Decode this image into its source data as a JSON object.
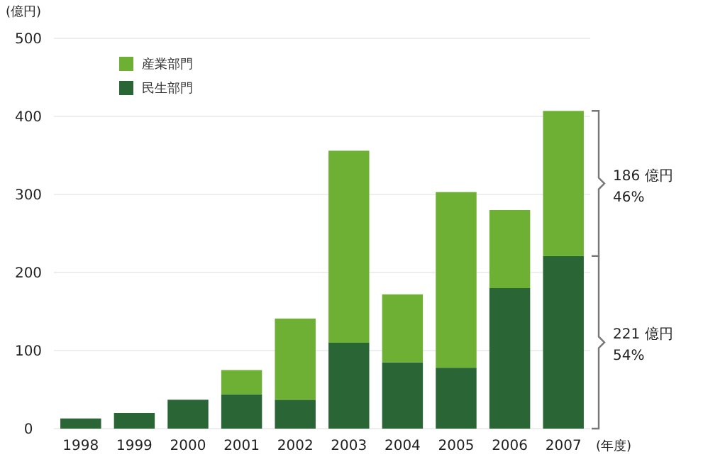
{
  "chart_data": {
    "type": "bar",
    "stacked": true,
    "ylabel": "(億円)",
    "xlabel": "(年度)",
    "categories": [
      "1998",
      "1999",
      "2000",
      "2001",
      "2002",
      "2003",
      "2004",
      "2005",
      "2006",
      "2007"
    ],
    "series": [
      {
        "name": "民生部門",
        "color": "#2a6535",
        "values": [
          13,
          20,
          37,
          44,
          37,
          110,
          85,
          78,
          180,
          221
        ]
      },
      {
        "name": "産業部門",
        "color": "#6db033",
        "values": [
          0,
          0,
          0,
          31,
          104,
          246,
          87,
          225,
          100,
          186
        ]
      }
    ],
    "ylim": [
      0,
      500
    ],
    "yticks": [
      0,
      100,
      200,
      300,
      400,
      500
    ],
    "grid": "y",
    "legend": "top left",
    "annotations": [
      "186 億円",
      "46%",
      "221 億円",
      "54%"
    ]
  }
}
